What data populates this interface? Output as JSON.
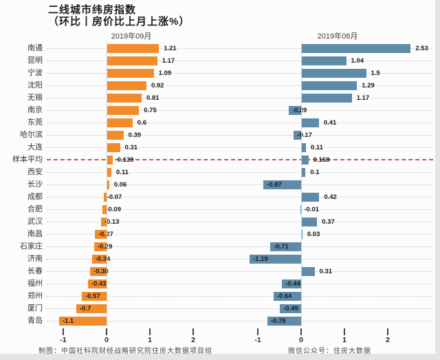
{
  "title": {
    "line1": "二线城市纬房指数",
    "line2": "（环比丨房价比上月上涨%）"
  },
  "panels": [
    {
      "header": "2019年09月"
    },
    {
      "header": "2019年08月"
    }
  ],
  "chart_data": {
    "type": "bar",
    "orientation": "horizontal",
    "title": "二线城市纬房指数（环比丨房价比上月上涨%）",
    "categories": [
      "南通",
      "昆明",
      "宁波",
      "沈阳",
      "无锡",
      "南京",
      "东莞",
      "哈尔滨",
      "大连",
      "样本平均",
      "西安",
      "长沙",
      "成都",
      "合肥",
      "武汉",
      "南昌",
      "石家庄",
      "济南",
      "长春",
      "福州",
      "郑州",
      "厦门",
      "青岛"
    ],
    "series": [
      {
        "name": "2019年09月",
        "color": "#F28C2B",
        "values": [
          1.21,
          1.17,
          1.09,
          0.92,
          0.81,
          0.75,
          0.6,
          0.39,
          0.31,
          0.139,
          0.11,
          0.06,
          -0.07,
          -0.09,
          -0.13,
          -0.27,
          -0.29,
          -0.34,
          -0.38,
          -0.43,
          -0.57,
          -0.7,
          -1.1
        ]
      },
      {
        "name": "2019年08月",
        "color": "#5E8CA8",
        "values": [
          2.53,
          1.04,
          1.5,
          1.29,
          1.17,
          -0.29,
          0.41,
          -0.17,
          0.11,
          0.168,
          0.1,
          -0.87,
          0.42,
          -0.01,
          0.37,
          0.03,
          -0.71,
          -1.19,
          0.31,
          -0.44,
          -0.64,
          -0.49,
          -0.78
        ]
      }
    ],
    "reference_row": {
      "label": "样本平均",
      "line_color": "#B23B2E",
      "line_style": "dash-dot"
    },
    "x_ticks": [
      -1,
      0,
      1,
      2
    ],
    "xlim": [
      -1.4,
      2.8
    ],
    "grid": "dotted-row-guides",
    "legend_position": "none"
  },
  "footer": {
    "left": "制图：中国社科院财经战略研究院住房大数据项目组",
    "right": "微信公众号：住房大数据"
  }
}
